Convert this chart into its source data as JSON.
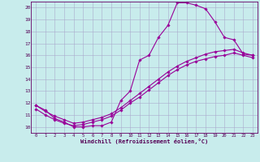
{
  "xlabel": "Windchill (Refroidissement éolien,°C)",
  "bg_color": "#c8ecec",
  "line_color": "#990099",
  "grid_color": "#aaaacc",
  "spine_color": "#660066",
  "xlim": [
    -0.5,
    23.5
  ],
  "ylim": [
    9.5,
    20.5
  ],
  "xticks": [
    0,
    1,
    2,
    3,
    4,
    5,
    6,
    7,
    8,
    9,
    10,
    11,
    12,
    13,
    14,
    15,
    16,
    17,
    18,
    19,
    20,
    21,
    22,
    23
  ],
  "yticks": [
    10,
    11,
    12,
    13,
    14,
    15,
    16,
    17,
    18,
    19,
    20
  ],
  "curve1_x": [
    0,
    1,
    2,
    3,
    4,
    5,
    6,
    7,
    8,
    9,
    10,
    11,
    12,
    13,
    14,
    15,
    16,
    17,
    18,
    19,
    20,
    21,
    22,
    23
  ],
  "curve1_y": [
    11.8,
    11.4,
    10.7,
    10.4,
    10.0,
    10.0,
    10.1,
    10.1,
    10.4,
    12.2,
    13.0,
    15.6,
    16.0,
    17.5,
    18.5,
    20.4,
    20.4,
    20.2,
    19.9,
    18.8,
    17.5,
    17.3,
    16.1,
    16.0
  ],
  "curve2_x": [
    0,
    1,
    2,
    3,
    4,
    5,
    6,
    7,
    8,
    9,
    10,
    11,
    12,
    13,
    14,
    15,
    16,
    17,
    18,
    19,
    20,
    21,
    22,
    23
  ],
  "curve2_y": [
    11.8,
    11.3,
    10.9,
    10.6,
    10.3,
    10.4,
    10.6,
    10.8,
    11.1,
    11.6,
    12.2,
    12.8,
    13.4,
    14.0,
    14.6,
    15.1,
    15.5,
    15.8,
    16.1,
    16.3,
    16.4,
    16.5,
    16.2,
    16.0
  ],
  "curve3_x": [
    0,
    1,
    2,
    3,
    4,
    5,
    6,
    7,
    8,
    9,
    10,
    11,
    12,
    13,
    14,
    15,
    16,
    17,
    18,
    19,
    20,
    21,
    22,
    23
  ],
  "curve3_y": [
    11.5,
    11.0,
    10.6,
    10.3,
    10.1,
    10.2,
    10.4,
    10.6,
    10.9,
    11.4,
    12.0,
    12.5,
    13.1,
    13.7,
    14.3,
    14.8,
    15.2,
    15.5,
    15.7,
    15.9,
    16.0,
    16.2,
    16.0,
    15.8
  ]
}
